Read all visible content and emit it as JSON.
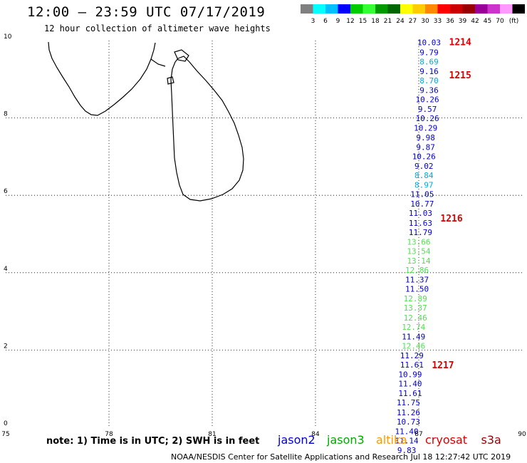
{
  "header": {
    "title": "12:00 – 23:59 UTC 07/17/2019",
    "subtitle": "12 hour collection of altimeter wave heights"
  },
  "colorbar": {
    "colors": [
      "#808080",
      "#00ffff",
      "#00bfff",
      "#0000ff",
      "#00cc00",
      "#33ff33",
      "#009900",
      "#006600",
      "#ffff00",
      "#ffcc00",
      "#ff8800",
      "#ff0000",
      "#cc0000",
      "#990000",
      "#990099",
      "#cc33cc",
      "#ff99ff",
      "#000000"
    ],
    "labels": [
      "3",
      "6",
      "9",
      "12",
      "15",
      "18",
      "21",
      "24",
      "27",
      "30",
      "33",
      "36",
      "39",
      "42",
      "45",
      "70",
      "(ft)"
    ]
  },
  "map": {
    "lon_range": [
      75,
      90
    ],
    "lat_range": [
      0,
      10
    ],
    "lon_ticks": [
      "75",
      "78",
      "81",
      "84",
      "87",
      "90"
    ],
    "lat_ticks": [
      "0",
      "2",
      "4",
      "6",
      "8",
      "10"
    ],
    "track_labels": [
      {
        "text": "1214",
        "lat": 9.95
      },
      {
        "text": "1215",
        "lat": 9.1
      },
      {
        "text": "1216",
        "lat": 5.4
      },
      {
        "text": "1217",
        "lat": 1.6
      }
    ],
    "observations": [
      {
        "value": "10.03",
        "lon": 87.3,
        "lat": 9.95,
        "color": "#0000cc"
      },
      {
        "value": "9.79",
        "lon": 87.3,
        "lat": 9.7,
        "color": "#0000cc"
      },
      {
        "value": "8.69",
        "lon": 87.3,
        "lat": 9.46,
        "color": "#00aadd"
      },
      {
        "value": "9.16",
        "lon": 87.3,
        "lat": 9.21,
        "color": "#0000cc"
      },
      {
        "value": "8.70",
        "lon": 87.3,
        "lat": 8.97,
        "color": "#00aadd"
      },
      {
        "value": "9.36",
        "lon": 87.3,
        "lat": 8.72,
        "color": "#0000cc"
      },
      {
        "value": "10.26",
        "lon": 87.25,
        "lat": 8.48,
        "color": "#0000cc"
      },
      {
        "value": "9.57",
        "lon": 87.25,
        "lat": 8.23,
        "color": "#0000cc"
      },
      {
        "value": "10.26",
        "lon": 87.25,
        "lat": 7.99,
        "color": "#0000cc"
      },
      {
        "value": "10.29",
        "lon": 87.2,
        "lat": 7.74,
        "color": "#0000cc"
      },
      {
        "value": "9.98",
        "lon": 87.2,
        "lat": 7.5,
        "color": "#0000cc"
      },
      {
        "value": "9.87",
        "lon": 87.2,
        "lat": 7.25,
        "color": "#0000cc"
      },
      {
        "value": "10.26",
        "lon": 87.15,
        "lat": 7.01,
        "color": "#0000cc"
      },
      {
        "value": "9.02",
        "lon": 87.15,
        "lat": 6.76,
        "color": "#0000cc"
      },
      {
        "value": "8.84",
        "lon": 87.15,
        "lat": 6.52,
        "color": "#00aadd"
      },
      {
        "value": "8.97",
        "lon": 87.15,
        "lat": 6.27,
        "color": "#00aadd"
      },
      {
        "value": "11.05",
        "lon": 87.1,
        "lat": 6.03,
        "color": "#0000cc"
      },
      {
        "value": "10.77",
        "lon": 87.1,
        "lat": 5.78,
        "color": "#0000cc"
      },
      {
        "value": "11.03",
        "lon": 87.05,
        "lat": 5.54,
        "color": "#0000cc"
      },
      {
        "value": "11.63",
        "lon": 87.05,
        "lat": 5.29,
        "color": "#0000cc"
      },
      {
        "value": "11.79",
        "lon": 87.05,
        "lat": 5.05,
        "color": "#0000cc"
      },
      {
        "value": "13.66",
        "lon": 87.0,
        "lat": 4.8,
        "color": "#55dd55"
      },
      {
        "value": "13.54",
        "lon": 87.0,
        "lat": 4.56,
        "color": "#55dd55"
      },
      {
        "value": "13.14",
        "lon": 87.0,
        "lat": 4.31,
        "color": "#55dd55"
      },
      {
        "value": "12.86",
        "lon": 86.95,
        "lat": 4.07,
        "color": "#55dd55"
      },
      {
        "value": "11.37",
        "lon": 86.95,
        "lat": 3.82,
        "color": "#0000cc"
      },
      {
        "value": "11.50",
        "lon": 86.95,
        "lat": 3.58,
        "color": "#0000cc"
      },
      {
        "value": "12.89",
        "lon": 86.9,
        "lat": 3.33,
        "color": "#55dd55"
      },
      {
        "value": "13.37",
        "lon": 86.9,
        "lat": 3.09,
        "color": "#55dd55"
      },
      {
        "value": "12.46",
        "lon": 86.9,
        "lat": 2.84,
        "color": "#55dd55"
      },
      {
        "value": "12.74",
        "lon": 86.85,
        "lat": 2.6,
        "color": "#55dd55"
      },
      {
        "value": "11.49",
        "lon": 86.85,
        "lat": 2.35,
        "color": "#0000cc"
      },
      {
        "value": "12.46",
        "lon": 86.85,
        "lat": 2.11,
        "color": "#55dd55"
      },
      {
        "value": "11.29",
        "lon": 86.8,
        "lat": 1.86,
        "color": "#0000cc"
      },
      {
        "value": "11.61",
        "lon": 86.8,
        "lat": 1.62,
        "color": "#0000cc"
      },
      {
        "value": "10.99",
        "lon": 86.75,
        "lat": 1.37,
        "color": "#0000cc"
      },
      {
        "value": "11.40",
        "lon": 86.75,
        "lat": 1.13,
        "color": "#0000cc"
      },
      {
        "value": "11.61",
        "lon": 86.75,
        "lat": 0.88,
        "color": "#0000cc"
      },
      {
        "value": "11.75",
        "lon": 86.7,
        "lat": 0.64,
        "color": "#0000cc"
      },
      {
        "value": "11.26",
        "lon": 86.7,
        "lat": 0.39,
        "color": "#0000cc"
      },
      {
        "value": "10.73",
        "lon": 86.7,
        "lat": 0.15,
        "color": "#0000cc"
      },
      {
        "value": "11.40",
        "lon": 86.65,
        "lat": -0.1,
        "color": "#0000cc"
      },
      {
        "value": "11.14",
        "lon": 86.65,
        "lat": -0.34,
        "color": "#0000cc"
      },
      {
        "value": "9.83",
        "lon": 86.65,
        "lat": -0.59,
        "color": "#0000cc"
      }
    ]
  },
  "note": "note: 1) Time is in UTC; 2) SWH is in feet",
  "legend": [
    {
      "text": "jason2",
      "color": "#0000dd"
    },
    {
      "text": "jason3",
      "color": "#00aa00"
    },
    {
      "text": "altika",
      "color": "#ff9900"
    },
    {
      "text": "cryosat",
      "color": "#dd0000"
    },
    {
      "text": "s3a",
      "color": "#990000"
    }
  ],
  "footer": "NOAA/NESDIS Center for Satellite Applications and Research   Jul 18 12:27:42 UTC 2019"
}
